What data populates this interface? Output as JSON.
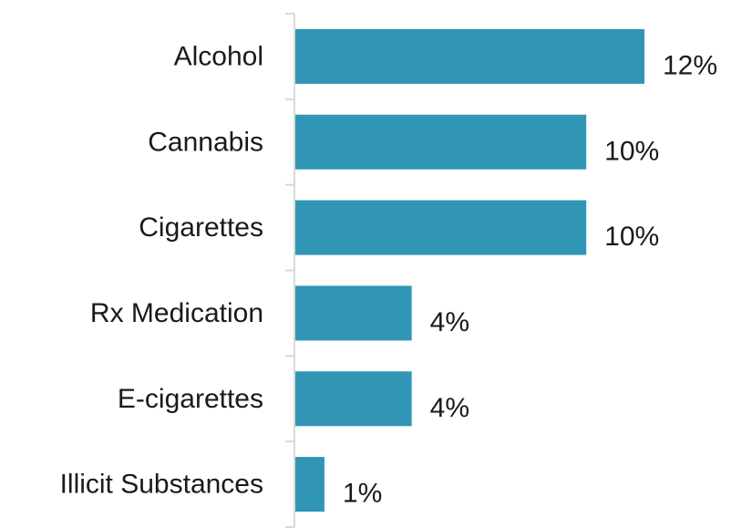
{
  "chart_data": {
    "type": "bar",
    "orientation": "horizontal",
    "categories": [
      "Alcohol",
      "Cannabis",
      "Cigarettes",
      "Rx Medication",
      "E-cigarettes",
      "Illicit Substances"
    ],
    "values": [
      12,
      10,
      10,
      4,
      4,
      1
    ],
    "value_labels": [
      "12%",
      "10%",
      "10%",
      "4%",
      "4%",
      "1%"
    ],
    "unit": "%",
    "bar_color": "#3196b5",
    "title": "",
    "xlabel": "",
    "ylabel": "",
    "xlim": [
      0,
      14
    ],
    "grid": false,
    "legend": "none"
  }
}
